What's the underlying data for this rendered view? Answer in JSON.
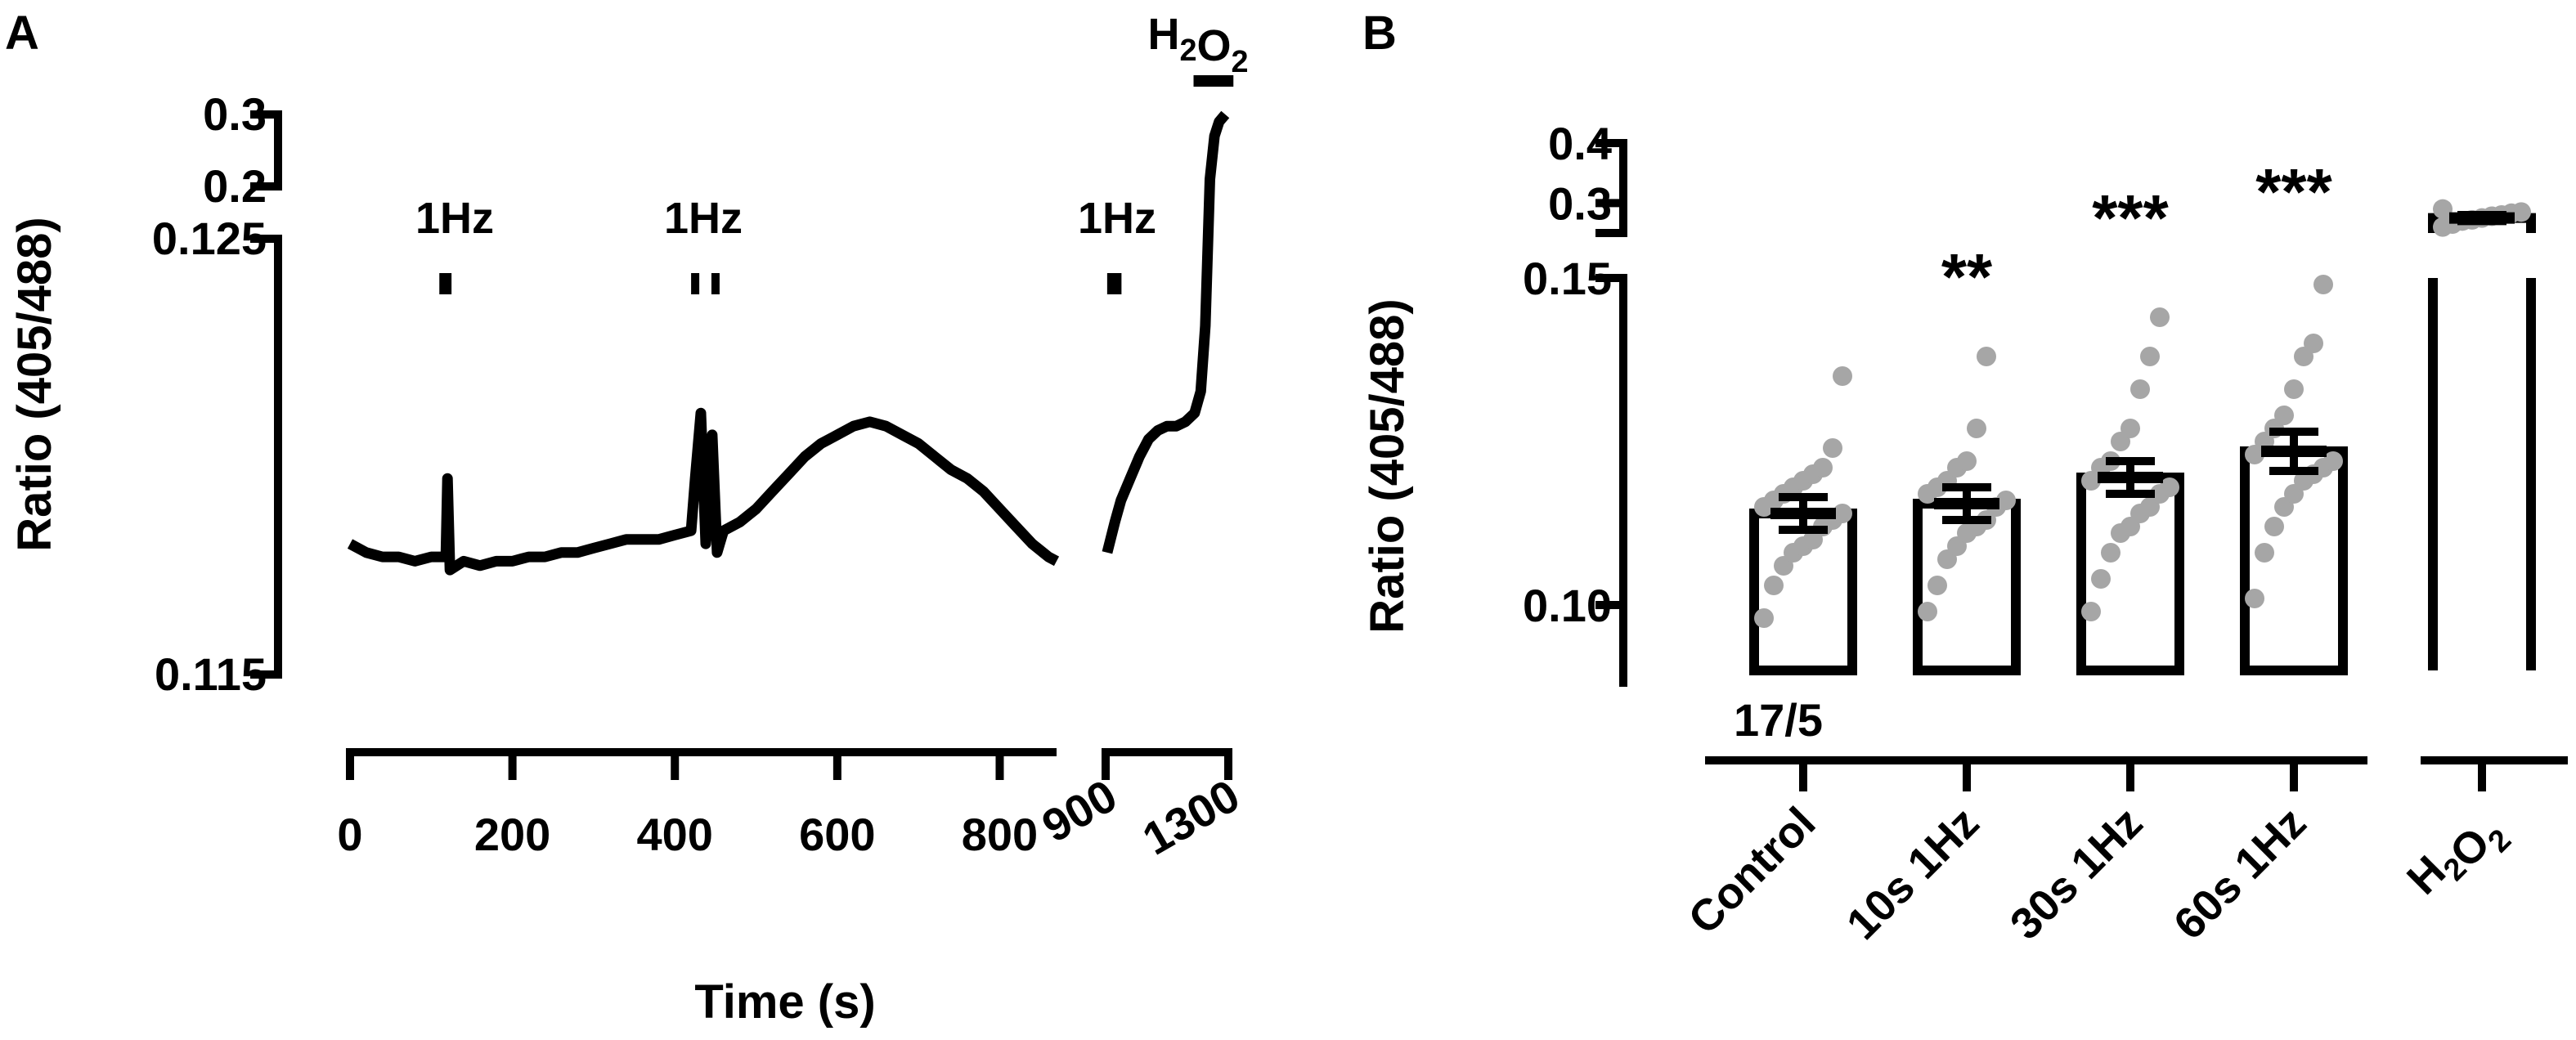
{
  "chart_data": [
    {
      "panel": "A",
      "type": "line",
      "xlabel": "Time (s)",
      "ylabel": "Ratio (405/488)",
      "x_segments": [
        {
          "range": [
            0,
            870
          ],
          "ticks": [
            "0",
            "200",
            "400",
            "600",
            "800"
          ],
          "tick_values": [
            0,
            200,
            400,
            600,
            800
          ]
        },
        {
          "range": [
            900,
            1300
          ],
          "ticks": [
            "900",
            "1300"
          ],
          "tick_values": [
            900,
            1300
          ]
        }
      ],
      "y_segments": [
        {
          "range": [
            0.115,
            0.125
          ],
          "ticks": [
            "0.115",
            "0.125"
          ],
          "tick_values": [
            0.115,
            0.125
          ]
        },
        {
          "range": [
            0.2,
            0.3
          ],
          "ticks": [
            "0.2",
            "0.3"
          ],
          "tick_values": [
            0.2,
            0.3
          ]
        }
      ],
      "stimulus_labels": [
        {
          "text": "1Hz",
          "bars": [
            [
              110,
              125
            ]
          ]
        },
        {
          "text": "1Hz",
          "bars": [
            [
              420,
              430
            ],
            [
              445,
              455
            ]
          ]
        },
        {
          "text": "1Hz",
          "bars": [
            [
              905,
              915
            ],
            [
              925,
              935
            ]
          ]
        }
      ],
      "h2o2_label": {
        "main": "H",
        "sub1": "2",
        "mid": "O",
        "sub2": "2",
        "bar": [
          1240,
          1290
        ]
      },
      "series": [
        {
          "segment": 0,
          "points": [
            [
              0,
              0.118
            ],
            [
              20,
              0.1178
            ],
            [
              40,
              0.1177
            ],
            [
              60,
              0.1177
            ],
            [
              80,
              0.1176
            ],
            [
              100,
              0.1177
            ],
            [
              118,
              0.1177
            ],
            [
              120,
              0.1195
            ],
            [
              123,
              0.1174
            ],
            [
              140,
              0.1176
            ],
            [
              160,
              0.1175
            ],
            [
              180,
              0.1176
            ],
            [
              200,
              0.1176
            ],
            [
              220,
              0.1177
            ],
            [
              240,
              0.1177
            ],
            [
              260,
              0.1178
            ],
            [
              280,
              0.1178
            ],
            [
              300,
              0.1179
            ],
            [
              320,
              0.118
            ],
            [
              340,
              0.1181
            ],
            [
              360,
              0.1181
            ],
            [
              380,
              0.1181
            ],
            [
              400,
              0.1182
            ],
            [
              420,
              0.1183
            ],
            [
              425,
              0.1195
            ],
            [
              432,
              0.121
            ],
            [
              438,
              0.118
            ],
            [
              446,
              0.1205
            ],
            [
              452,
              0.1178
            ],
            [
              460,
              0.1183
            ],
            [
              480,
              0.1185
            ],
            [
              500,
              0.1188
            ],
            [
              520,
              0.1192
            ],
            [
              540,
              0.1196
            ],
            [
              560,
              0.12
            ],
            [
              580,
              0.1203
            ],
            [
              600,
              0.1205
            ],
            [
              620,
              0.1207
            ],
            [
              640,
              0.1208
            ],
            [
              660,
              0.1207
            ],
            [
              680,
              0.1205
            ],
            [
              700,
              0.1203
            ],
            [
              720,
              0.12
            ],
            [
              740,
              0.1197
            ],
            [
              760,
              0.1195
            ],
            [
              780,
              0.1192
            ],
            [
              800,
              0.1188
            ],
            [
              820,
              0.1184
            ],
            [
              840,
              0.118
            ],
            [
              860,
              0.1177
            ],
            [
              870,
              0.1176
            ]
          ]
        },
        {
          "segment": 1,
          "points": [
            [
              905,
              0.1178
            ],
            [
              930,
              0.1185
            ],
            [
              950,
              0.119
            ],
            [
              980,
              0.1195
            ],
            [
              1010,
              0.12
            ],
            [
              1040,
              0.1204
            ],
            [
              1070,
              0.1206
            ],
            [
              1100,
              0.1207
            ],
            [
              1130,
              0.1207
            ],
            [
              1160,
              0.1208
            ],
            [
              1190,
              0.121
            ],
            [
              1210,
              0.1215
            ],
            [
              1225,
              0.123
            ],
            [
              1240,
              0.21
            ],
            [
              1255,
              0.27
            ],
            [
              1270,
              0.29
            ],
            [
              1290,
              0.3
            ]
          ]
        }
      ]
    },
    {
      "panel": "B",
      "type": "bar",
      "ylabel": "Ratio  (405/488)",
      "categories": [
        "Control",
        "10s 1Hz",
        "30s 1Hz",
        "60s 1Hz",
        "H2O2"
      ],
      "category_label_parts": [
        {
          "main": "Control"
        },
        {
          "main": "10s 1Hz"
        },
        {
          "main": "30s 1Hz"
        },
        {
          "main": "60s 1Hz"
        },
        {
          "main": "H",
          "sub1": "2",
          "mid": "O",
          "sub2": "2"
        }
      ],
      "values": [
        0.114,
        0.1155,
        0.1195,
        0.1235,
        0.275
      ],
      "sem": [
        0.0025,
        0.0025,
        0.0025,
        0.003,
        0.005
      ],
      "significance": [
        "",
        "**",
        "***",
        "***",
        ""
      ],
      "n_label": "17/5",
      "y_segments": [
        {
          "range": [
            0.09,
            0.15
          ],
          "ticks": [
            "0.10",
            "0.15"
          ],
          "tick_values": [
            0.1,
            0.15
          ]
        },
        {
          "range": [
            0.25,
            0.4
          ],
          "ticks": [
            "0.3",
            "0.4"
          ],
          "tick_values": [
            0.3,
            0.4
          ]
        }
      ],
      "points": [
        [
          0.098,
          0.103,
          0.106,
          0.108,
          0.109,
          0.11,
          0.112,
          0.113,
          0.114,
          0.115,
          0.116,
          0.117,
          0.118,
          0.119,
          0.12,
          0.121,
          0.124,
          0.135
        ],
        [
          0.099,
          0.103,
          0.107,
          0.109,
          0.111,
          0.112,
          0.113,
          0.115,
          0.116,
          0.117,
          0.118,
          0.119,
          0.121,
          0.122,
          0.127,
          0.138
        ],
        [
          0.099,
          0.104,
          0.108,
          0.111,
          0.112,
          0.114,
          0.115,
          0.117,
          0.118,
          0.119,
          0.121,
          0.122,
          0.125,
          0.127,
          0.133,
          0.138,
          0.144
        ],
        [
          0.101,
          0.108,
          0.112,
          0.115,
          0.117,
          0.119,
          0.12,
          0.121,
          0.122,
          0.123,
          0.125,
          0.127,
          0.129,
          0.133,
          0.138,
          0.14,
          0.149
        ],
        [
          0.26,
          0.265,
          0.27,
          0.272,
          0.275,
          0.278,
          0.28,
          0.283,
          0.285,
          0.29
        ]
      ],
      "colors": {
        "bar_edge": "#000000",
        "points": "#a6a6a6",
        "mean_bar": "#000000"
      }
    }
  ]
}
